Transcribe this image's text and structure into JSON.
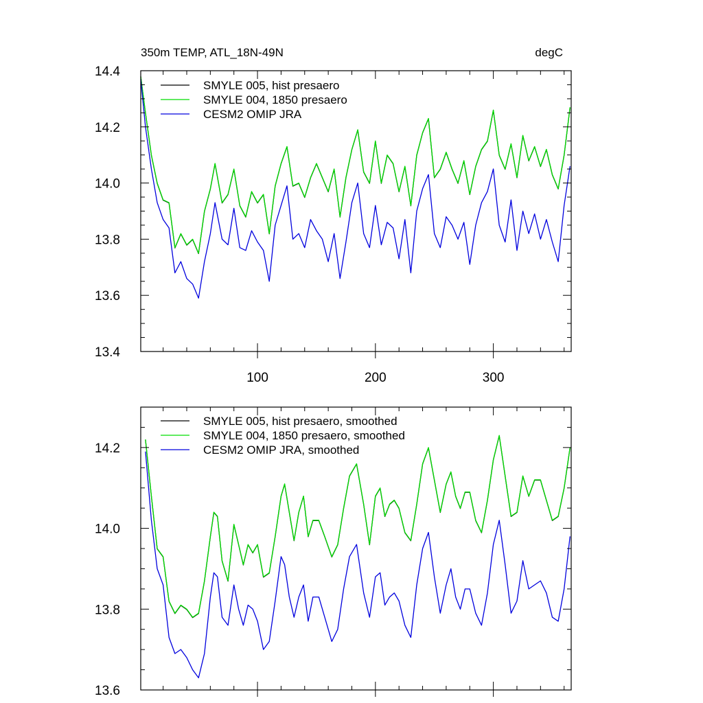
{
  "chart_data": [
    {
      "type": "line",
      "title_left": "350m TEMP, ATL_18N-49N",
      "title_right": "degC",
      "xlim": [
        1,
        366
      ],
      "ylim": [
        13.4,
        14.4
      ],
      "xticks": [
        100,
        200,
        300
      ],
      "xtick_labels": [
        "100",
        "200",
        "300"
      ],
      "yticks": [
        13.4,
        13.6,
        13.8,
        14.0,
        14.2,
        14.4
      ],
      "ytick_labels": [
        "13.4",
        "13.6",
        "13.8",
        "14.0",
        "14.2",
        "14.4"
      ],
      "legend_position": "top-left",
      "grid": false,
      "series": [
        {
          "name": "SMYLE 005, hist presaero",
          "color": "#000000",
          "x": [
            1,
            5,
            10,
            15,
            20,
            25,
            30,
            35,
            40,
            45,
            50,
            55,
            60,
            64,
            70,
            75,
            80,
            85,
            90,
            95,
            100,
            105,
            110,
            115,
            120,
            125,
            130,
            135,
            140,
            145,
            150,
            155,
            160,
            165,
            170,
            175,
            180,
            185,
            190,
            195,
            200,
            205,
            210,
            215,
            220,
            225,
            230,
            235,
            240,
            245,
            250,
            255,
            260,
            265,
            270,
            275,
            280,
            285,
            290,
            295,
            300,
            305,
            310,
            315,
            320,
            325,
            330,
            335,
            340,
            345,
            350,
            355,
            360,
            365
          ],
          "y": [
            14.38,
            14.25,
            14.1,
            14.0,
            13.94,
            13.93,
            13.77,
            13.82,
            13.78,
            13.8,
            13.75,
            13.9,
            13.98,
            14.07,
            13.93,
            13.96,
            14.05,
            13.92,
            13.88,
            13.97,
            13.93,
            13.96,
            13.82,
            13.99,
            14.07,
            14.13,
            13.99,
            14.0,
            13.95,
            14.02,
            14.07,
            14.02,
            13.97,
            14.05,
            13.88,
            14.02,
            14.12,
            14.19,
            14.04,
            14.0,
            14.15,
            14.0,
            14.1,
            14.07,
            13.97,
            14.06,
            13.92,
            14.1,
            14.18,
            14.23,
            14.02,
            14.05,
            14.11,
            14.05,
            14.0,
            14.08,
            13.96,
            14.06,
            14.12,
            14.15,
            14.26,
            14.1,
            14.05,
            14.14,
            14.02,
            14.17,
            14.08,
            14.13,
            14.06,
            14.12,
            14.03,
            13.98,
            14.1,
            14.27
          ]
        },
        {
          "name": "SMYLE 004, 1850 presaero",
          "color": "#00dd00",
          "x": [
            1,
            5,
            10,
            15,
            20,
            25,
            30,
            35,
            40,
            45,
            50,
            55,
            60,
            64,
            70,
            75,
            80,
            85,
            90,
            95,
            100,
            105,
            110,
            115,
            120,
            125,
            130,
            135,
            140,
            145,
            150,
            155,
            160,
            165,
            170,
            175,
            180,
            185,
            190,
            195,
            200,
            205,
            210,
            215,
            220,
            225,
            230,
            235,
            240,
            245,
            250,
            255,
            260,
            265,
            270,
            275,
            280,
            285,
            290,
            295,
            300,
            305,
            310,
            315,
            320,
            325,
            330,
            335,
            340,
            345,
            350,
            355,
            360,
            365
          ],
          "y": [
            14.38,
            14.25,
            14.1,
            14.0,
            13.94,
            13.93,
            13.77,
            13.82,
            13.78,
            13.8,
            13.75,
            13.9,
            13.98,
            14.07,
            13.93,
            13.96,
            14.05,
            13.92,
            13.88,
            13.97,
            13.93,
            13.96,
            13.82,
            13.99,
            14.07,
            14.13,
            13.99,
            14.0,
            13.95,
            14.02,
            14.07,
            14.02,
            13.97,
            14.05,
            13.88,
            14.02,
            14.12,
            14.19,
            14.04,
            14.0,
            14.15,
            14.0,
            14.1,
            14.07,
            13.97,
            14.06,
            13.92,
            14.1,
            14.18,
            14.23,
            14.02,
            14.05,
            14.11,
            14.05,
            14.0,
            14.08,
            13.96,
            14.06,
            14.12,
            14.15,
            14.26,
            14.1,
            14.05,
            14.14,
            14.02,
            14.17,
            14.08,
            14.13,
            14.06,
            14.12,
            14.03,
            13.98,
            14.1,
            14.27
          ]
        },
        {
          "name": "CESM2 OMIP JRA",
          "color": "#0000dd",
          "x": [
            1,
            5,
            10,
            15,
            20,
            25,
            30,
            35,
            40,
            45,
            50,
            55,
            60,
            64,
            70,
            75,
            80,
            85,
            90,
            95,
            100,
            105,
            110,
            115,
            120,
            125,
            130,
            135,
            140,
            145,
            150,
            155,
            160,
            165,
            170,
            175,
            180,
            185,
            190,
            195,
            200,
            205,
            210,
            215,
            220,
            225,
            230,
            235,
            240,
            245,
            250,
            255,
            260,
            265,
            270,
            275,
            280,
            285,
            290,
            295,
            300,
            305,
            310,
            315,
            320,
            325,
            330,
            335,
            340,
            345,
            350,
            355,
            360,
            365
          ],
          "y": [
            14.37,
            14.2,
            14.05,
            13.93,
            13.87,
            13.84,
            13.68,
            13.72,
            13.66,
            13.64,
            13.59,
            13.72,
            13.82,
            13.93,
            13.8,
            13.78,
            13.91,
            13.77,
            13.76,
            13.83,
            13.79,
            13.76,
            13.65,
            13.85,
            13.92,
            13.99,
            13.8,
            13.82,
            13.77,
            13.87,
            13.83,
            13.8,
            13.72,
            13.82,
            13.66,
            13.79,
            13.93,
            14.0,
            13.82,
            13.77,
            13.92,
            13.78,
            13.86,
            13.84,
            13.73,
            13.87,
            13.68,
            13.9,
            13.98,
            14.03,
            13.82,
            13.77,
            13.88,
            13.85,
            13.8,
            13.86,
            13.71,
            13.85,
            13.93,
            13.97,
            14.05,
            13.85,
            13.79,
            13.94,
            13.76,
            13.9,
            13.82,
            13.89,
            13.8,
            13.87,
            13.79,
            13.72,
            13.92,
            14.06
          ]
        }
      ]
    },
    {
      "type": "line",
      "title_left": "",
      "title_right": "",
      "xlim": [
        1,
        366
      ],
      "ylim": [
        13.6,
        14.3
      ],
      "xticks": [
        100,
        200,
        300
      ],
      "xtick_labels": [
        "",
        "",
        ""
      ],
      "yticks": [
        13.6,
        13.8,
        14.0,
        14.2
      ],
      "ytick_labels": [
        "13.6",
        "13.8",
        "14.0",
        "14.2"
      ],
      "legend_position": "top-left",
      "grid": false,
      "series": [
        {
          "name": "SMYLE 005, hist presaero, smoothed",
          "color": "#000000",
          "x": [
            5,
            10,
            15,
            20,
            25,
            30,
            35,
            40,
            45,
            50,
            55,
            60,
            63,
            66,
            70,
            75,
            80,
            84,
            88,
            92,
            96,
            100,
            105,
            110,
            115,
            120,
            123,
            127,
            131,
            135,
            139,
            143,
            147,
            152,
            157,
            163,
            168,
            173,
            178,
            184,
            190,
            195,
            200,
            204,
            208,
            212,
            216,
            220,
            225,
            230,
            235,
            240,
            245,
            250,
            255,
            260,
            264,
            268,
            272,
            276,
            280,
            285,
            290,
            295,
            300,
            305,
            310,
            315,
            320,
            325,
            330,
            335,
            340,
            345,
            350,
            355,
            360,
            365
          ],
          "y": [
            14.22,
            14.08,
            13.95,
            13.93,
            13.82,
            13.79,
            13.81,
            13.8,
            13.78,
            13.79,
            13.87,
            13.98,
            14.04,
            14.03,
            13.92,
            13.87,
            14.01,
            13.96,
            13.91,
            13.96,
            13.94,
            13.96,
            13.88,
            13.89,
            13.98,
            14.08,
            14.11,
            14.04,
            13.97,
            14.04,
            14.08,
            13.98,
            14.02,
            14.02,
            13.98,
            13.93,
            13.96,
            14.05,
            14.13,
            14.16,
            14.06,
            13.96,
            14.08,
            14.1,
            14.03,
            14.06,
            14.07,
            14.05,
            13.99,
            13.97,
            14.06,
            14.16,
            14.2,
            14.12,
            14.04,
            14.11,
            14.14,
            14.08,
            14.05,
            14.09,
            14.09,
            14.02,
            13.99,
            14.07,
            14.17,
            14.23,
            14.13,
            14.03,
            14.04,
            14.13,
            14.08,
            14.12,
            14.12,
            14.07,
            14.02,
            14.03,
            14.1,
            14.2
          ]
        },
        {
          "name": "SMYLE 004, 1850 presaero, smoothed",
          "color": "#00dd00",
          "x": [
            5,
            10,
            15,
            20,
            25,
            30,
            35,
            40,
            45,
            50,
            55,
            60,
            63,
            66,
            70,
            75,
            80,
            84,
            88,
            92,
            96,
            100,
            105,
            110,
            115,
            120,
            123,
            127,
            131,
            135,
            139,
            143,
            147,
            152,
            157,
            163,
            168,
            173,
            178,
            184,
            190,
            195,
            200,
            204,
            208,
            212,
            216,
            220,
            225,
            230,
            235,
            240,
            245,
            250,
            255,
            260,
            264,
            268,
            272,
            276,
            280,
            285,
            290,
            295,
            300,
            305,
            310,
            315,
            320,
            325,
            330,
            335,
            340,
            345,
            350,
            355,
            360,
            365
          ],
          "y": [
            14.22,
            14.08,
            13.95,
            13.93,
            13.82,
            13.79,
            13.81,
            13.8,
            13.78,
            13.79,
            13.87,
            13.98,
            14.04,
            14.03,
            13.92,
            13.87,
            14.01,
            13.96,
            13.91,
            13.96,
            13.94,
            13.96,
            13.88,
            13.89,
            13.98,
            14.08,
            14.11,
            14.04,
            13.97,
            14.04,
            14.08,
            13.98,
            14.02,
            14.02,
            13.98,
            13.93,
            13.96,
            14.05,
            14.13,
            14.16,
            14.06,
            13.96,
            14.08,
            14.1,
            14.03,
            14.06,
            14.07,
            14.05,
            13.99,
            13.97,
            14.06,
            14.16,
            14.2,
            14.12,
            14.04,
            14.11,
            14.14,
            14.08,
            14.05,
            14.09,
            14.09,
            14.02,
            13.99,
            14.07,
            14.17,
            14.23,
            14.13,
            14.03,
            14.04,
            14.13,
            14.08,
            14.12,
            14.12,
            14.07,
            14.02,
            14.03,
            14.1,
            14.2
          ]
        },
        {
          "name": "CESM2 OMIP JRA, smoothed",
          "color": "#0000dd",
          "x": [
            5,
            10,
            15,
            20,
            25,
            30,
            35,
            40,
            45,
            50,
            55,
            60,
            63,
            66,
            70,
            75,
            80,
            84,
            88,
            92,
            96,
            100,
            105,
            110,
            115,
            120,
            123,
            127,
            131,
            135,
            139,
            143,
            147,
            152,
            157,
            163,
            168,
            173,
            178,
            184,
            190,
            195,
            200,
            204,
            208,
            212,
            216,
            220,
            225,
            230,
            235,
            240,
            245,
            250,
            255,
            260,
            264,
            268,
            272,
            276,
            280,
            285,
            290,
            295,
            300,
            305,
            310,
            315,
            320,
            325,
            330,
            335,
            340,
            345,
            350,
            355,
            360,
            365
          ],
          "y": [
            14.19,
            14.02,
            13.9,
            13.86,
            13.73,
            13.69,
            13.7,
            13.68,
            13.65,
            13.63,
            13.69,
            13.83,
            13.89,
            13.88,
            13.78,
            13.76,
            13.86,
            13.8,
            13.76,
            13.81,
            13.8,
            13.77,
            13.7,
            13.72,
            13.82,
            13.93,
            13.91,
            13.83,
            13.78,
            13.83,
            13.86,
            13.77,
            13.83,
            13.83,
            13.78,
            13.72,
            13.75,
            13.85,
            13.93,
            13.96,
            13.84,
            13.78,
            13.88,
            13.89,
            13.81,
            13.83,
            13.84,
            13.82,
            13.76,
            13.73,
            13.86,
            13.95,
            13.99,
            13.88,
            13.79,
            13.86,
            13.9,
            13.83,
            13.8,
            13.85,
            13.85,
            13.79,
            13.76,
            13.84,
            13.96,
            14.02,
            13.91,
            13.79,
            13.82,
            13.92,
            13.85,
            13.86,
            13.87,
            13.84,
            13.78,
            13.77,
            13.85,
            13.98
          ]
        }
      ]
    }
  ]
}
